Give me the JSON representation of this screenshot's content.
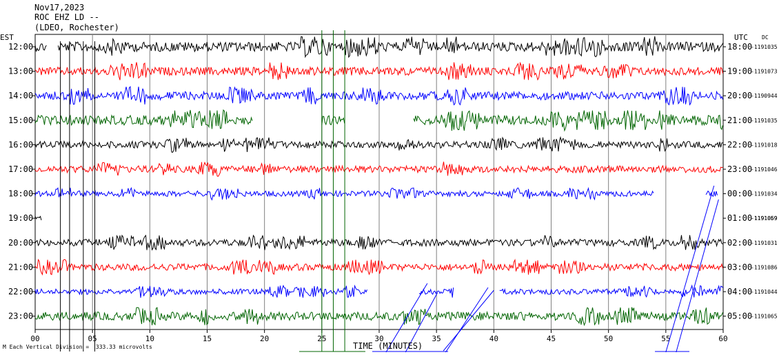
{
  "header": {
    "date": "Nov17,2023",
    "station": "ROC EHZ LD --",
    "source": "(LDEO, Rochester)"
  },
  "corner_labels": {
    "left": "EST",
    "right": "UTC",
    "dc": "DC"
  },
  "footnote": "Each Vertical Division =  333.33 microvolts",
  "footnote_mark": "M",
  "chart_data": {
    "type": "line",
    "title": "",
    "xlabel": "TIME (MINUTES)",
    "ylabel": "",
    "xlim": [
      0,
      60
    ],
    "xticks": [
      "00",
      "05",
      "10",
      "15",
      "20",
      "25",
      "30",
      "35",
      "40",
      "45",
      "50",
      "55",
      "60"
    ],
    "trace_colors": [
      "#000000",
      "#ff0000",
      "#0000ff",
      "#006400"
    ],
    "rows": [
      {
        "local": "12:00",
        "utc": "18:00",
        "count": "-1191035",
        "color": "#000000",
        "amp": 7,
        "data": [
          [
            0,
            1
          ],
          [
            2,
            60
          ]
        ]
      },
      {
        "local": "13:00",
        "utc": "19:00",
        "count": "-1191073",
        "color": "#ff0000",
        "amp": 6,
        "data": [
          [
            0,
            60
          ]
        ]
      },
      {
        "local": "14:00",
        "utc": "20:00",
        "count": "-1190944",
        "color": "#0000ff",
        "amp": 6,
        "data": [
          [
            0,
            60
          ]
        ]
      },
      {
        "local": "15:00",
        "utc": "21:00",
        "count": "-1191035",
        "color": "#006400",
        "amp": 7,
        "data": [
          [
            0,
            19
          ],
          [
            25,
            27
          ],
          [
            33,
            60
          ]
        ]
      },
      {
        "local": "16:00",
        "utc": "22:00",
        "count": "-1191018",
        "color": "#000000",
        "amp": 5,
        "data": [
          [
            0,
            60
          ]
        ]
      },
      {
        "local": "17:00",
        "utc": "23:00",
        "count": "-1191046",
        "color": "#ff0000",
        "amp": 5,
        "data": [
          [
            0,
            60
          ]
        ]
      },
      {
        "local": "18:00",
        "utc": "00:00",
        "count": "-1191034",
        "color": "#0000ff",
        "amp": 4,
        "data": [
          [
            0,
            54
          ],
          [
            58.5,
            59.5
          ]
        ]
      },
      {
        "local": "19:00",
        "utc": "01:00",
        "count": "-1191059",
        "color": "#000000",
        "amp": 3,
        "data": [
          [
            0,
            0.6
          ]
        ]
      },
      {
        "local": "20:00",
        "utc": "02:00",
        "count": "-1191031",
        "color": "#000000",
        "amp": 5,
        "data": [
          [
            0,
            60
          ]
        ]
      },
      {
        "local": "21:00",
        "utc": "03:00",
        "count": "-1191086",
        "color": "#ff0000",
        "amp": 5,
        "data": [
          [
            0,
            60
          ]
        ]
      },
      {
        "local": "22:00",
        "utc": "04:00",
        "count": "-1191044",
        "color": "#0000ff",
        "amp": 4,
        "data": [
          [
            0,
            29
          ],
          [
            33.5,
            36.5
          ],
          [
            40.5,
            60
          ]
        ]
      },
      {
        "local": "23:00",
        "utc": "05:00",
        "count": "-1191065",
        "color": "#006400",
        "amp": 6,
        "data": [
          [
            0,
            60
          ]
        ]
      }
    ],
    "overlay_count": "-1191069",
    "spikes": [
      {
        "color": "#000000",
        "minutes": [
          2.2,
          3.0,
          4.2,
          5.2
        ]
      },
      {
        "color": "#006400",
        "minutes": [
          25.0,
          26.0,
          27.0
        ]
      }
    ],
    "grid": true
  }
}
